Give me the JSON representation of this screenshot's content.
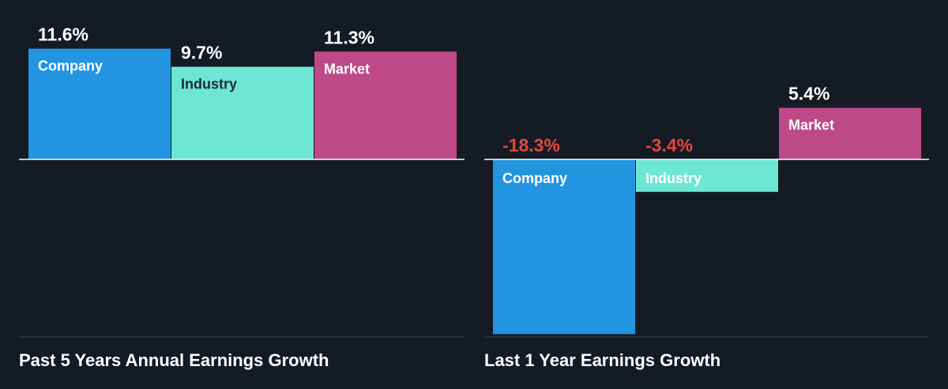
{
  "chart_data": [
    {
      "type": "bar",
      "title": "Past 5 Years Annual Earnings Growth",
      "categories": [
        "Company",
        "Industry",
        "Market"
      ],
      "values": [
        11.6,
        9.7,
        11.3
      ],
      "value_labels": [
        "11.6%",
        "9.7%",
        "11.3%"
      ],
      "unit": "%",
      "ylim": [
        -19,
        11.6
      ],
      "grid": false,
      "legend": "none"
    },
    {
      "type": "bar",
      "title": "Last 1 Year Earnings Growth",
      "categories": [
        "Company",
        "Industry",
        "Market"
      ],
      "values": [
        -18.3,
        -3.4,
        5.4
      ],
      "value_labels": [
        "-18.3%",
        "-3.4%",
        "5.4%"
      ],
      "unit": "%",
      "ylim": [
        -19,
        11.6
      ],
      "grid": false,
      "legend": "none"
    }
  ],
  "colors": {
    "background": "#151b24",
    "company": "#2394e0",
    "industry": "#6ee6d4",
    "market": "#bd4a87",
    "negative_label": "#e5463f",
    "text": "#ffffff",
    "dark_text": "#1e2b33"
  }
}
